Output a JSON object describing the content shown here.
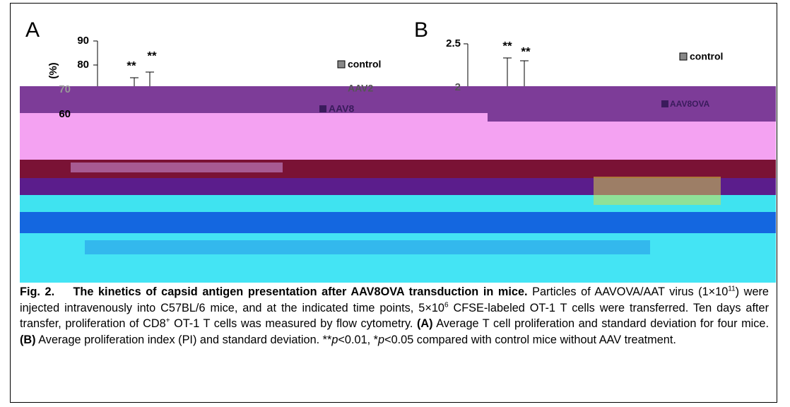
{
  "figure": {
    "panels": [
      {
        "label": "A",
        "axis_label": "(%)",
        "yticks": [
          "90",
          "80",
          "70",
          "60"
        ],
        "asterisks": [
          "**",
          "**"
        ],
        "legend": [
          "control",
          "AAV2",
          "AAV8"
        ]
      },
      {
        "label": "B",
        "yticks": [
          "2.5",
          "2"
        ],
        "asterisks": [
          "**",
          "**"
        ],
        "legend": [
          "control",
          "AAV8OVA"
        ]
      }
    ]
  },
  "caption": {
    "parts": [
      "Fig. 2.",
      "The kinetics of capsid antigen presentation after AAV8OVA transduction in mice.",
      "Particles of AAVOVA/AAT virus (1×10",
      "11",
      ") were injected intravenously into C57BL/6 mice, and at the indicated time points, 5×10",
      "6",
      " CFSE-labeled OT-1 T cells were transferred. Ten days after transfer, proliferation of CD8",
      "+",
      " OT-1 T cells was measured by flow cytometry. ",
      "(A)",
      " Average T cell proliferation and standard deviation for four mice. ",
      "(B)",
      " Average proliferation index (PI) and standard deviation. **",
      "p",
      "<0.01, *",
      "p",
      "<0.05 compared with control mice without AAV treatment."
    ]
  }
}
